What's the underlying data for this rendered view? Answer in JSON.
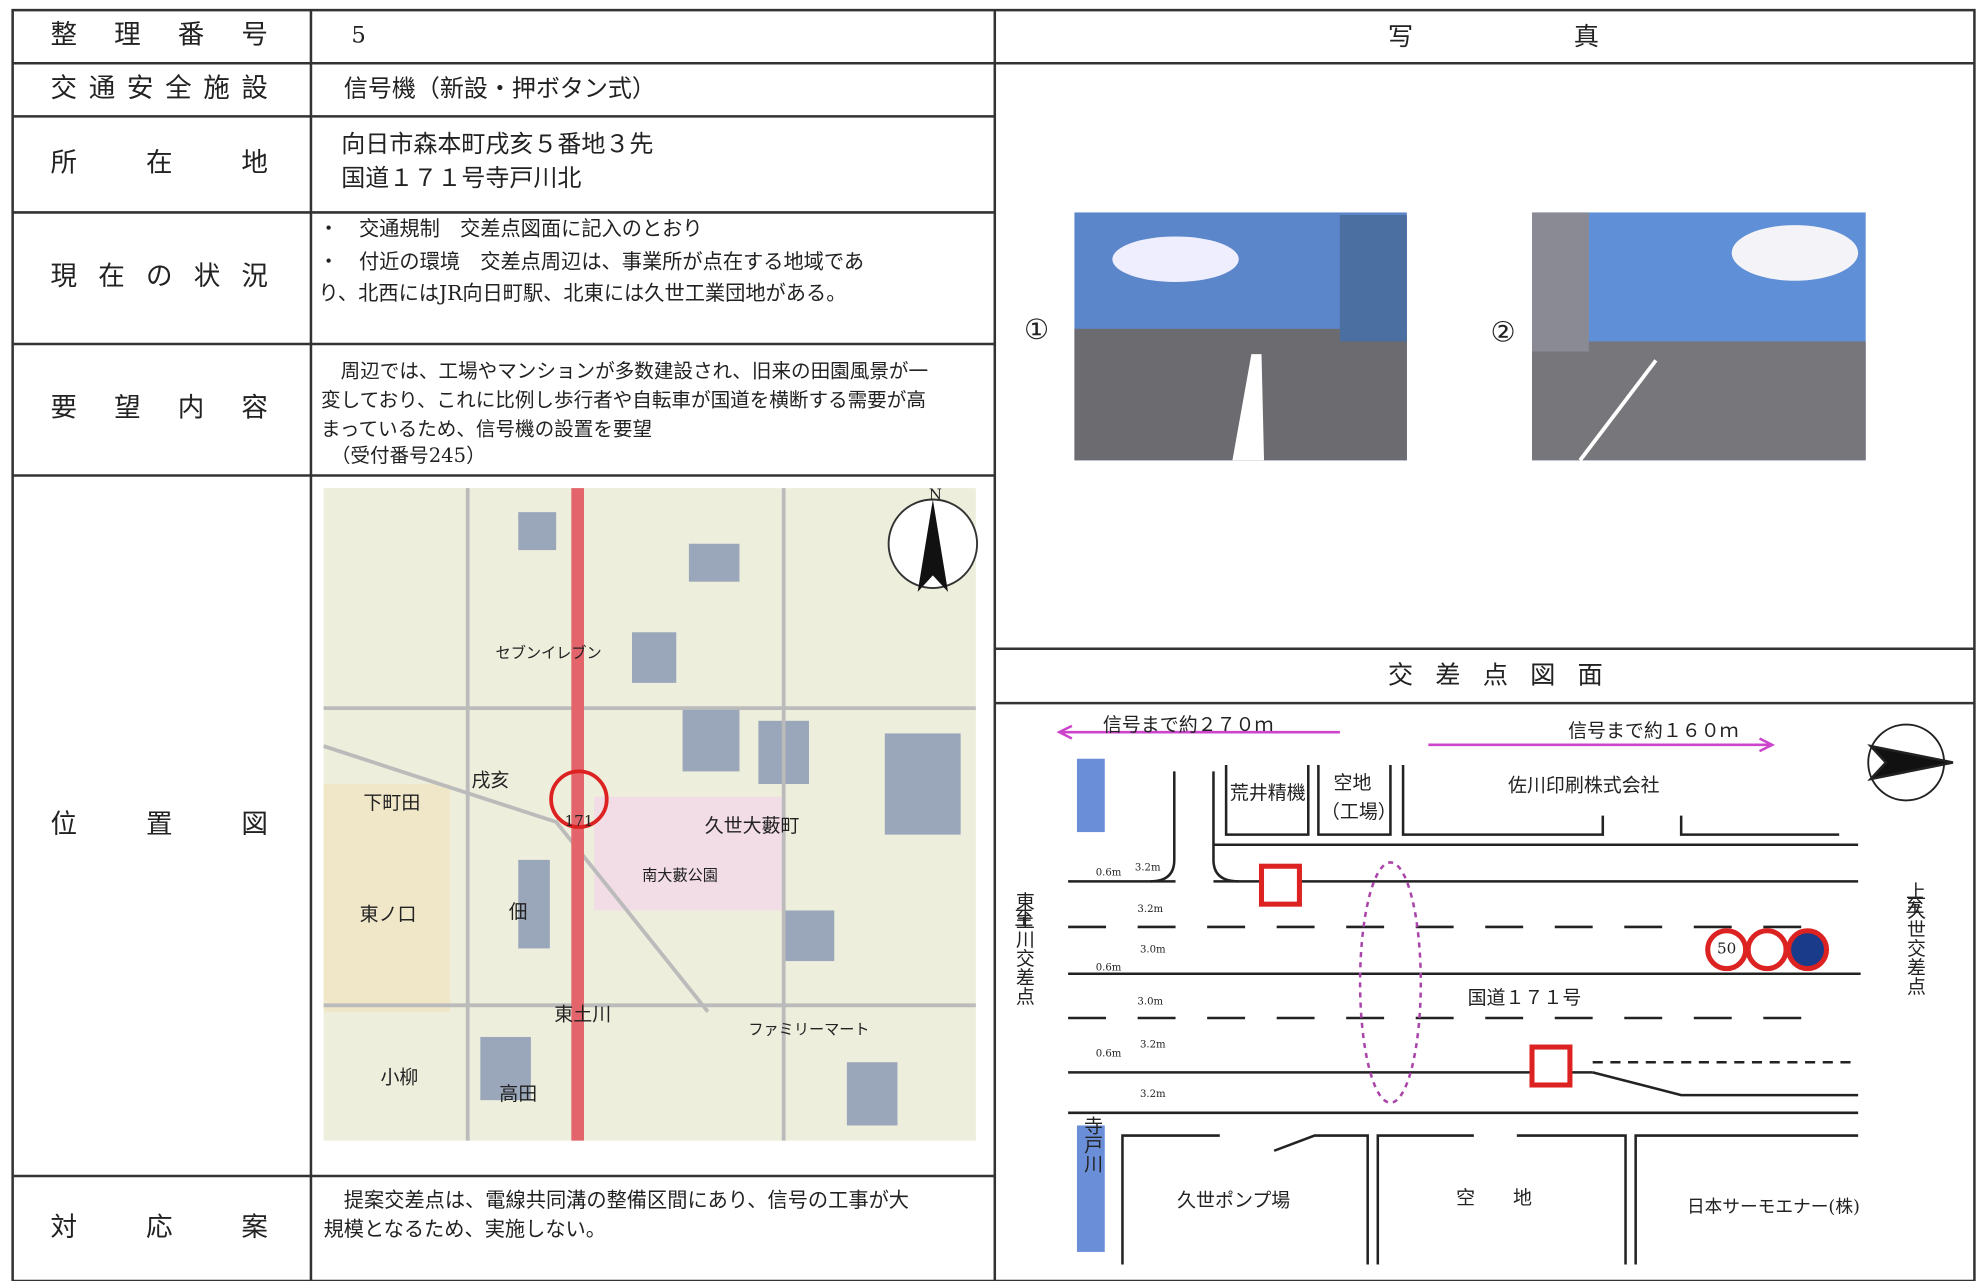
{
  "form": {
    "rows": [
      {
        "label": "整理番号",
        "value": [
          "5"
        ]
      },
      {
        "label": "交通安全施設",
        "value": [
          "信号機（新設・押ボタン式）"
        ]
      },
      {
        "label": "所在地",
        "value": [
          "向日市森本町戌亥５番地３先",
          "国道１７１号寺戸川北"
        ]
      },
      {
        "label": "現在の状況",
        "value": [
          "・　交通規制　交差点図面に記入のとおり",
          "・　付近の環境　交差点周辺は、事業所が点在する地域であ",
          "り、北西にはJR向日町駅、北東には久世工業団地がある。"
        ]
      },
      {
        "label": "要望内容",
        "value": [
          "　周辺では、工場やマンションが多数建設され、旧来の田園風景が一",
          "変しており、これに比例し歩行者や自転車が国道を横断する需要が高",
          "まっているため、信号機の設置を要望",
          "　（受付番号245）"
        ]
      },
      {
        "label": "位置図"
      },
      {
        "label": "対応案",
        "value": [
          "　提案交差点は、電線共同溝の整備区間にあり、信号の工事が大",
          "規模となるため、実施しない。"
        ]
      }
    ]
  },
  "photos": {
    "title": "写真",
    "items": [
      {
        "label": "①"
      },
      {
        "label": "②"
      }
    ]
  },
  "location_map": {
    "labels": [
      "下町田",
      "戌亥",
      "久世大藪町",
      "東ノ口",
      "佃",
      "東土川",
      "高田",
      "小柳",
      "ファミリーマート",
      "南大藪公園",
      "セブンイレブン",
      "171",
      "N"
    ]
  },
  "intersection_diagram": {
    "title": "交差点図面",
    "labels": [
      "信号まで約２７０ｍ",
      "信号まで約１６０ｍ",
      "荒井精機",
      "空地",
      "（工場）",
      "佐川印刷株式会社",
      "至",
      "東土川交差点",
      "至",
      "上久世交差点",
      "国道１７１号",
      "久世ポンプ場",
      "空　　地",
      "日本サーモエナー(株)",
      "寺戸川",
      "0.6m",
      "3.2m",
      "3.2m",
      "3.0m",
      "0.6m",
      "3.0m",
      "0.6m",
      "3.2m",
      "3.2m",
      "50"
    ]
  }
}
